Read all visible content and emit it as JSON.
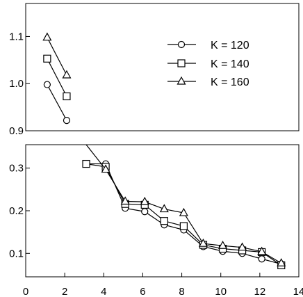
{
  "chart_data": {
    "type": "line",
    "title": "",
    "xlabel": "",
    "ylabel": "",
    "xlim": [
      0,
      14
    ],
    "axis_break": true,
    "grid": false,
    "legend_position": "top-right",
    "x_ticks": [
      0,
      2,
      4,
      6,
      8,
      10,
      12,
      14
    ],
    "x_tick_labels": [
      "0",
      "2",
      "4",
      "6",
      "8",
      "10",
      "12",
      "14"
    ],
    "upper_panel": {
      "ylim": [
        0.9,
        1.17
      ],
      "y_ticks": [
        0.9,
        1.0,
        1.1
      ],
      "y_tick_labels": [
        "0.9",
        "1.0",
        "1.1"
      ]
    },
    "lower_panel": {
      "ylim": [
        0.045,
        0.355
      ],
      "y_ticks": [
        0.1,
        0.2,
        0.3
      ],
      "y_tick_labels": [
        "0.1",
        "0.2",
        "0.3"
      ]
    },
    "series": [
      {
        "name": "K = 120",
        "marker": "circle",
        "x": [
          1.1,
          2.1,
          2.3,
          3.1,
          4.1,
          5.1,
          6.1,
          7.1,
          8.1,
          9.1,
          10.1,
          11.1,
          12.1,
          13.1
        ],
        "y": [
          0.998,
          0.922,
          0.86,
          0.31,
          0.31,
          0.206,
          0.198,
          0.167,
          0.155,
          0.116,
          0.105,
          0.1,
          0.087,
          0.075
        ]
      },
      {
        "name": "K = 140",
        "marker": "square",
        "x": [
          1.1,
          2.1,
          2.3,
          3.1,
          4.1,
          5.1,
          6.1,
          7.1,
          8.1,
          9.1,
          10.1,
          11.1,
          12.1,
          13.1
        ],
        "y": [
          1.053,
          0.973,
          0.86,
          0.31,
          0.303,
          0.216,
          0.214,
          0.176,
          0.164,
          0.12,
          0.111,
          0.107,
          0.103,
          0.072
        ]
      },
      {
        "name": "K = 160",
        "marker": "triangle",
        "x": [
          1.1,
          2.1,
          2.3,
          3.1,
          4.1,
          5.1,
          6.1,
          7.1,
          8.1,
          9.1,
          10.1,
          11.1,
          12.1,
          13.1
        ],
        "y": [
          1.098,
          1.018,
          0.86,
          0.355,
          0.297,
          0.222,
          0.221,
          0.204,
          0.195,
          0.123,
          0.118,
          0.114,
          0.104,
          0.077
        ]
      }
    ]
  }
}
